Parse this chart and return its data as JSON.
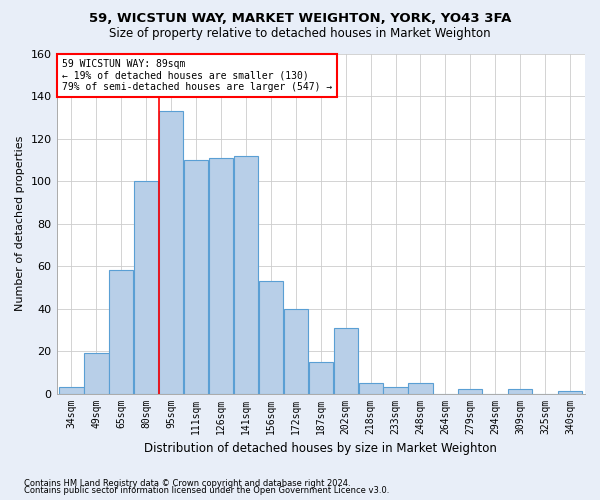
{
  "title1": "59, WICSTUN WAY, MARKET WEIGHTON, YORK, YO43 3FA",
  "title2": "Size of property relative to detached houses in Market Weighton",
  "xlabel": "Distribution of detached houses by size in Market Weighton",
  "ylabel": "Number of detached properties",
  "footnote1": "Contains HM Land Registry data © Crown copyright and database right 2024.",
  "footnote2": "Contains public sector information licensed under the Open Government Licence v3.0.",
  "bin_labels": [
    "34sqm",
    "49sqm",
    "65sqm",
    "80sqm",
    "95sqm",
    "111sqm",
    "126sqm",
    "141sqm",
    "156sqm",
    "172sqm",
    "187sqm",
    "202sqm",
    "218sqm",
    "233sqm",
    "248sqm",
    "264sqm",
    "279sqm",
    "294sqm",
    "309sqm",
    "325sqm",
    "340sqm"
  ],
  "bar_heights": [
    3,
    19,
    58,
    100,
    133,
    110,
    111,
    112,
    53,
    40,
    15,
    31,
    5,
    3,
    5,
    0,
    2,
    0,
    2,
    0,
    1
  ],
  "bar_color": "#b8cfe8",
  "bar_edge_color": "#5a9fd4",
  "vline_color": "red",
  "vline_x_index": 4,
  "annotation_text_line1": "59 WICSTUN WAY: 89sqm",
  "annotation_text_line2": "← 19% of detached houses are smaller (130)",
  "annotation_text_line3": "79% of semi-detached houses are larger (547) →",
  "annotation_box_color": "white",
  "annotation_box_edge": "red",
  "ylim": [
    0,
    160
  ],
  "yticks": [
    0,
    20,
    40,
    60,
    80,
    100,
    120,
    140,
    160
  ],
  "background_color": "#e8eef8",
  "plot_bg_color": "white",
  "grid_color": "#cccccc"
}
